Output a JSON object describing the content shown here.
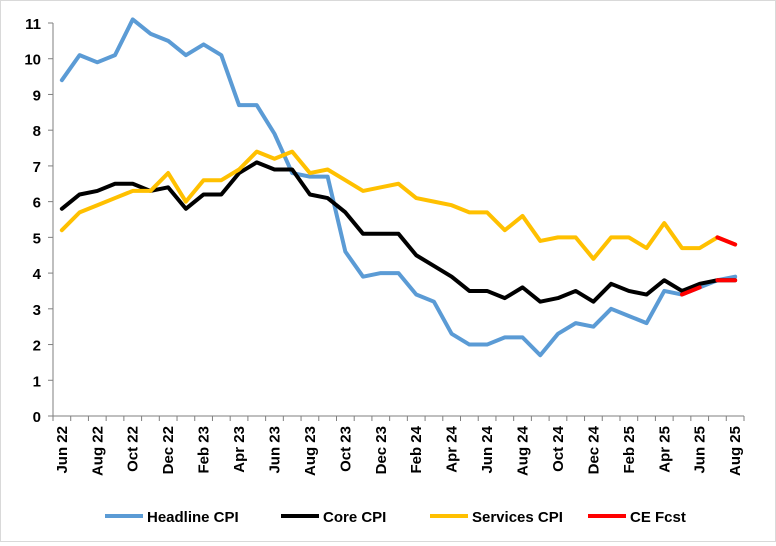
{
  "chart_data": {
    "type": "line",
    "title": "",
    "xlabel": "",
    "ylabel": "",
    "ylim": [
      0,
      11
    ],
    "yticks": [
      0,
      1,
      2,
      3,
      4,
      5,
      6,
      7,
      8,
      9,
      10,
      11
    ],
    "grid": false,
    "legend_position": "bottom",
    "x": [
      "Jun 22",
      "Jul 22",
      "Aug 22",
      "Sep 22",
      "Oct 22",
      "Nov 22",
      "Dec 22",
      "Jan 23",
      "Feb 23",
      "Mar 23",
      "Apr 23",
      "May 23",
      "Jun 23",
      "Jul 23",
      "Aug 23",
      "Sep 23",
      "Oct 23",
      "Nov 23",
      "Dec 23",
      "Jan 24",
      "Feb 24",
      "Mar 24",
      "Apr 24",
      "May 24",
      "Jun 24",
      "Jul 24",
      "Aug 24",
      "Sep 24",
      "Oct 24",
      "Nov 24",
      "Dec 24",
      "Jan 25",
      "Feb 25",
      "Mar 25",
      "Apr 25",
      "May 25",
      "Jun 25",
      "Jul 25",
      "Aug 25"
    ],
    "x_tick_labels": [
      "Jun 22",
      "Aug 22",
      "Oct 22",
      "Dec 22",
      "Feb 23",
      "Apr 23",
      "Jun 23",
      "Aug 23",
      "Oct 23",
      "Dec 23",
      "Feb 24",
      "Apr 24",
      "Jun 24",
      "Aug 24",
      "Oct 24",
      "Dec 24",
      "Feb 25",
      "Apr 25",
      "Jun 25",
      "Aug 25"
    ],
    "series": [
      {
        "name": "Headline CPI",
        "color": "#5b9bd5",
        "values": [
          9.4,
          10.1,
          9.9,
          10.1,
          11.1,
          10.7,
          10.5,
          10.1,
          10.4,
          10.1,
          8.7,
          8.7,
          7.9,
          6.8,
          6.7,
          6.7,
          4.6,
          3.9,
          4.0,
          4.0,
          3.4,
          3.2,
          2.3,
          2.0,
          2.0,
          2.2,
          2.2,
          1.7,
          2.3,
          2.6,
          2.5,
          3.0,
          2.8,
          2.6,
          3.5,
          3.4,
          3.6,
          3.8,
          3.9
        ]
      },
      {
        "name": "Core CPI",
        "color": "#000000",
        "values": [
          5.8,
          6.2,
          6.3,
          6.5,
          6.5,
          6.3,
          6.4,
          5.8,
          6.2,
          6.2,
          6.8,
          7.1,
          6.9,
          6.9,
          6.2,
          6.1,
          5.7,
          5.1,
          5.1,
          5.1,
          4.5,
          4.2,
          3.9,
          3.5,
          3.5,
          3.3,
          3.6,
          3.2,
          3.3,
          3.5,
          3.2,
          3.7,
          3.5,
          3.4,
          3.8,
          3.5,
          3.7,
          3.8,
          3.8
        ]
      },
      {
        "name": "Services CPI",
        "color": "#ffc000",
        "values": [
          5.2,
          5.7,
          5.9,
          6.1,
          6.3,
          6.3,
          6.8,
          6.0,
          6.6,
          6.6,
          6.9,
          7.4,
          7.2,
          7.4,
          6.8,
          6.9,
          6.6,
          6.3,
          6.4,
          6.5,
          6.1,
          6.0,
          5.9,
          5.7,
          5.7,
          5.2,
          5.6,
          4.9,
          5.0,
          5.0,
          4.4,
          5.0,
          5.0,
          4.7,
          5.4,
          4.7,
          4.7,
          5.0,
          4.8
        ]
      },
      {
        "name": "CE Fcst",
        "color": "#ff0000",
        "values": [
          null,
          null,
          null,
          null,
          null,
          null,
          null,
          null,
          null,
          null,
          null,
          null,
          null,
          null,
          null,
          null,
          null,
          null,
          null,
          null,
          null,
          null,
          null,
          null,
          null,
          null,
          null,
          null,
          null,
          null,
          null,
          null,
          null,
          null,
          null,
          3.4,
          3.6,
          3.8,
          3.8
        ],
        "segments": [
          {
            "from": 35,
            "to": 36
          },
          {
            "from": 37,
            "to": 38
          }
        ]
      },
      {
        "name": "",
        "color": "#ff0000",
        "values": [
          null,
          null,
          null,
          null,
          null,
          null,
          null,
          null,
          null,
          null,
          null,
          null,
          null,
          null,
          null,
          null,
          null,
          null,
          null,
          null,
          null,
          null,
          null,
          null,
          null,
          null,
          null,
          null,
          null,
          null,
          null,
          null,
          null,
          null,
          null,
          null,
          null,
          5.0,
          4.8
        ]
      }
    ]
  }
}
